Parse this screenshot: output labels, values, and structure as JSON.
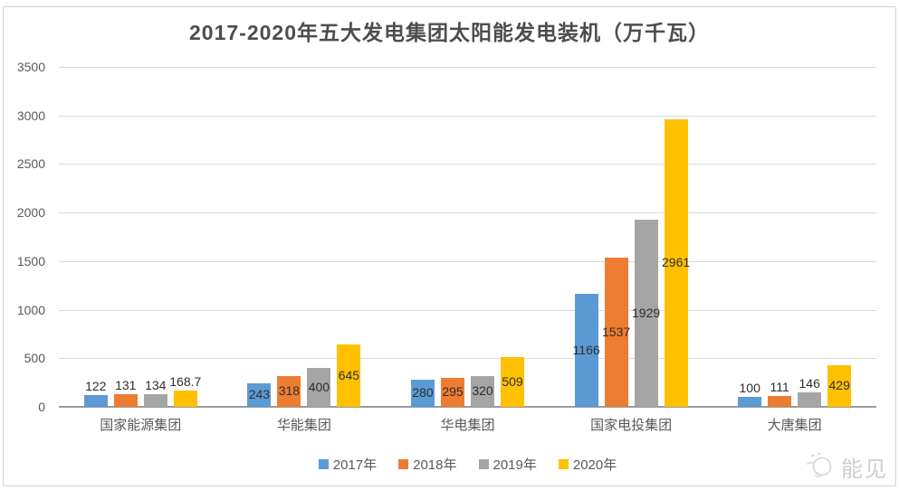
{
  "title": "2017-2020年五大发电集团太阳能发电装机（万千瓦）",
  "watermark": {
    "text": "能见"
  },
  "colors": {
    "grid": "#d9d9d9",
    "axis": "#9b9b9b",
    "tick_text": "#595959",
    "label_text": "#2f2f2f"
  },
  "chart_data": {
    "type": "bar",
    "title": "2017-2020年五大发电集团太阳能发电装机（万千瓦）",
    "categories": [
      "国家能源集团",
      "华能集团",
      "华电集团",
      "国家电投集团",
      "大唐集团"
    ],
    "series": [
      {
        "name": "2017年",
        "color": "#5B9BD5",
        "values": [
          122,
          243,
          280,
          1166,
          100
        ]
      },
      {
        "name": "2018年",
        "color": "#ED7D31",
        "values": [
          131,
          318,
          295,
          1537,
          111
        ]
      },
      {
        "name": "2019年",
        "color": "#A5A5A5",
        "values": [
          134,
          400,
          320,
          1929,
          146
        ]
      },
      {
        "name": "2020年",
        "color": "#FFC000",
        "values": [
          168.7,
          645,
          509,
          2961,
          429
        ]
      }
    ],
    "xlabel": "",
    "ylabel": "",
    "ylim": [
      0,
      3500
    ],
    "yticks": [
      0,
      500,
      1000,
      1500,
      2000,
      2500,
      3000,
      3500
    ],
    "grid": true,
    "legend_position": "bottom",
    "value_labels": true
  }
}
